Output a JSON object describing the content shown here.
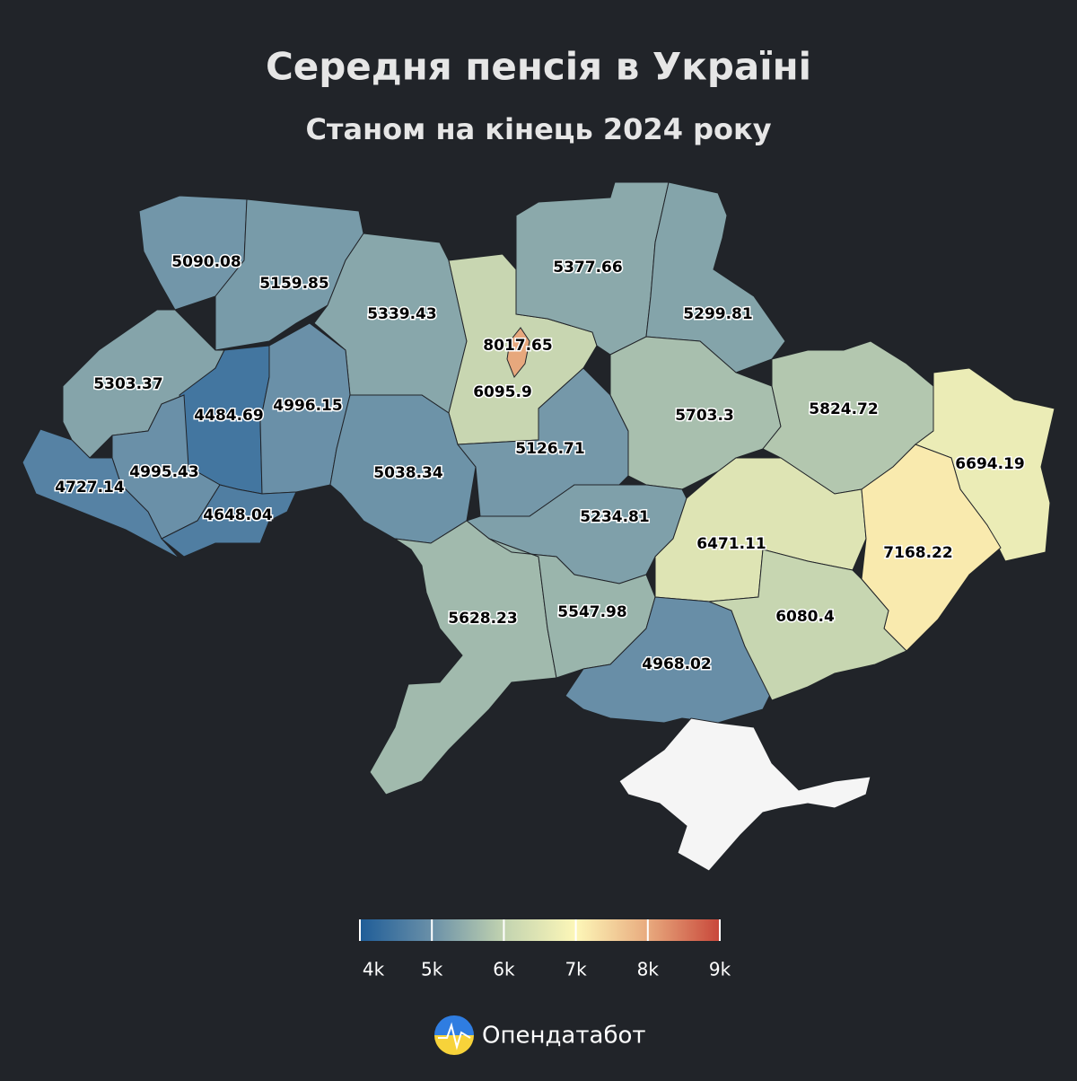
{
  "chart_data": {
    "type": "choropleth",
    "title": "Середня пенсія в Україні",
    "subtitle": "Станом на кінець 2024 року",
    "values": [
      5090.08,
      5159.85,
      5339.43,
      6095.9,
      8017.65,
      5377.66,
      5299.81,
      5303.37,
      4484.69,
      4996.15,
      5038.34,
      5126.71,
      5703.3,
      5824.72,
      6694.19,
      4995.43,
      4727.14,
      4648.04,
      5234.81,
      6471.11,
      7168.22,
      5628.23,
      5547.98,
      4968.02,
      6080.4
    ],
    "colorscale": [
      "#1f5d98",
      "#6a90a8",
      "#c2d3b0",
      "#fdf7b8",
      "#e8aa7e",
      "#c8473a"
    ],
    "clim": [
      4000,
      9000
    ],
    "cticks": [
      {
        "value": 4000,
        "label": "4k"
      },
      {
        "value": 5000,
        "label": "5k"
      },
      {
        "value": 6000,
        "label": "6k"
      },
      {
        "value": 7000,
        "label": "7k"
      },
      {
        "value": 8000,
        "label": "8k"
      },
      {
        "value": 9000,
        "label": "9k"
      }
    ]
  },
  "brand": "Опендатабот"
}
